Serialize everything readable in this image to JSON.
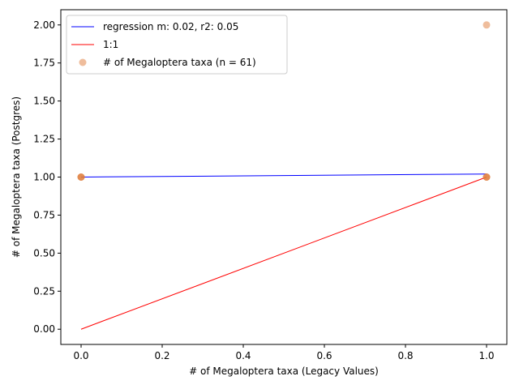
{
  "chart_data": {
    "type": "scatter",
    "xlabel": "# of Megaloptera taxa (Legacy Values)",
    "ylabel": "# of Megaloptera taxa (Postgres)",
    "xlim": [
      -0.05,
      1.05
    ],
    "ylim": [
      -0.1,
      2.1
    ],
    "x_ticks": [
      0.0,
      0.2,
      0.4,
      0.6,
      0.8,
      1.0
    ],
    "x_tick_labels": [
      "0.0",
      "0.2",
      "0.4",
      "0.6",
      "0.8",
      "1.0"
    ],
    "y_ticks": [
      0.0,
      0.25,
      0.5,
      0.75,
      1.0,
      1.25,
      1.5,
      1.75,
      2.0
    ],
    "y_tick_labels": [
      "0.00",
      "0.25",
      "0.50",
      "0.75",
      "1.00",
      "1.25",
      "1.50",
      "1.75",
      "2.00"
    ],
    "grid": false,
    "legend_position": "top-left",
    "series": [
      {
        "name": "regression m: 0.02, r2: 0.05",
        "kind": "line",
        "color": "#0000ff",
        "x": [
          0,
          1
        ],
        "y": [
          1.0,
          1.02
        ]
      },
      {
        "name": "1:1",
        "kind": "line",
        "color": "#ff0000",
        "x": [
          0,
          1
        ],
        "y": [
          0,
          1
        ]
      },
      {
        "name": "# of Megaloptera taxa (n = 61)",
        "kind": "scatter",
        "color": "#e07b39",
        "x": [
          0,
          0,
          0,
          1,
          1,
          1,
          1
        ],
        "y": [
          1,
          1,
          1,
          1,
          1,
          1,
          2
        ]
      }
    ]
  }
}
